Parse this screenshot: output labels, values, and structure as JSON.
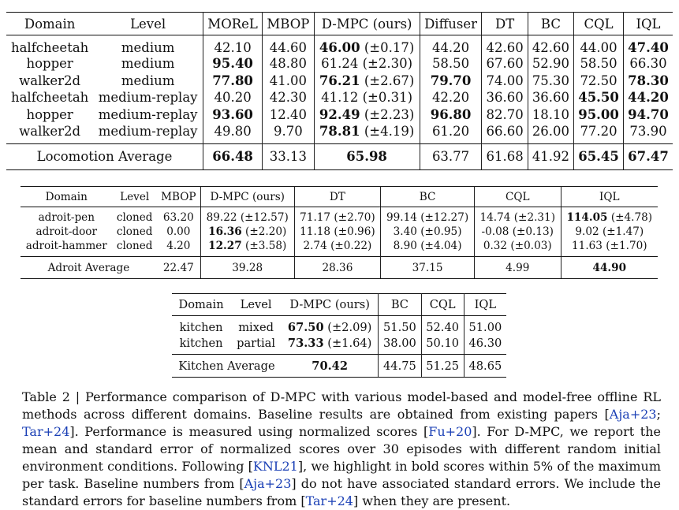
{
  "table1": {
    "headers": [
      "Domain",
      "Level",
      "MOReL",
      "MBOP",
      "D-MPC (ours)",
      "Diffuser",
      "DT",
      "BC",
      "CQL",
      "IQL"
    ],
    "rows": [
      {
        "domain": "halfcheetah",
        "level": "medium",
        "morel": "42.10",
        "mbop": "44.60",
        "dmpc": "46.00",
        "dmpc_se": "(±0.17)",
        "diffuser": "44.20",
        "dt": "42.60",
        "bc": "42.60",
        "cql": "44.00",
        "iql": "47.40"
      },
      {
        "domain": "hopper",
        "level": "medium",
        "morel": "95.40",
        "mbop": "48.80",
        "dmpc": "61.24",
        "dmpc_se": "(±2.30)",
        "diffuser": "58.50",
        "dt": "67.60",
        "bc": "52.90",
        "cql": "58.50",
        "iql": "66.30"
      },
      {
        "domain": "walker2d",
        "level": "medium",
        "morel": "77.80",
        "mbop": "41.00",
        "dmpc": "76.21",
        "dmpc_se": "(±2.67)",
        "diffuser": "79.70",
        "dt": "74.00",
        "bc": "75.30",
        "cql": "72.50",
        "iql": "78.30"
      },
      {
        "domain": "halfcheetah",
        "level": "medium-replay",
        "morel": "40.20",
        "mbop": "42.30",
        "dmpc": "41.12",
        "dmpc_se": "(±0.31)",
        "diffuser": "42.20",
        "dt": "36.60",
        "bc": "36.60",
        "cql": "45.50",
        "iql": "44.20"
      },
      {
        "domain": "hopper",
        "level": "medium-replay",
        "morel": "93.60",
        "mbop": "12.40",
        "dmpc": "92.49",
        "dmpc_se": "(±2.23)",
        "diffuser": "96.80",
        "dt": "82.70",
        "bc": "18.10",
        "cql": "95.00",
        "iql": "94.70"
      },
      {
        "domain": "walker2d",
        "level": "medium-replay",
        "morel": "49.80",
        "mbop": "9.70",
        "dmpc": "78.81",
        "dmpc_se": "(±4.19)",
        "diffuser": "61.20",
        "dt": "66.60",
        "bc": "26.00",
        "cql": "77.20",
        "iql": "73.90"
      }
    ],
    "average": {
      "label": "Locomotion Average",
      "morel": "66.48",
      "mbop": "33.13",
      "dmpc": "65.98",
      "diffuser": "63.77",
      "dt": "61.68",
      "bc": "41.92",
      "cql": "65.45",
      "iql": "67.47"
    }
  },
  "table2": {
    "headers": [
      "Domain",
      "Level",
      "MBOP",
      "D-MPC (ours)",
      "DT",
      "BC",
      "CQL",
      "IQL"
    ],
    "rows": [
      {
        "domain": "adroit-pen",
        "level": "cloned",
        "mbop": "63.20",
        "dmpc": "89.22",
        "dmpc_se": "(±12.57)",
        "dt": "71.17",
        "dt_se": "(±2.70)",
        "bc": "99.14",
        "bc_se": "(±12.27)",
        "cql": "14.74",
        "cql_se": "(±2.31)",
        "iql": "114.05",
        "iql_se": "(±4.78)"
      },
      {
        "domain": "adroit-door",
        "level": "cloned",
        "mbop": "0.00",
        "dmpc": "16.36",
        "dmpc_se": "(±2.20)",
        "dt": "11.18",
        "dt_se": "(±0.96)",
        "bc": "3.40",
        "bc_se": "(±0.95)",
        "cql": "-0.08",
        "cql_se": "(±0.13)",
        "iql": "9.02",
        "iql_se": "(±1.47)"
      },
      {
        "domain": "adroit-hammer",
        "level": "cloned",
        "mbop": "4.20",
        "dmpc": "12.27",
        "dmpc_se": "(±3.58)",
        "dt": "2.74",
        "dt_se": "(±0.22)",
        "bc": "8.90",
        "bc_se": "(±4.04)",
        "cql": "0.32",
        "cql_se": "(±0.03)",
        "iql": "11.63",
        "iql_se": "(±1.70)"
      }
    ],
    "average": {
      "label": "Adroit Average",
      "mbop": "22.47",
      "dmpc": "39.28",
      "dt": "28.36",
      "bc": "37.15",
      "cql": "4.99",
      "iql": "44.90"
    }
  },
  "table3": {
    "headers": [
      "Domain",
      "Level",
      "D-MPC (ours)",
      "BC",
      "CQL",
      "IQL"
    ],
    "rows": [
      {
        "domain": "kitchen",
        "level": "mixed",
        "dmpc": "67.50",
        "dmpc_se": "(±2.09)",
        "bc": "51.50",
        "cql": "52.40",
        "iql": "51.00"
      },
      {
        "domain": "kitchen",
        "level": "partial",
        "dmpc": "73.33",
        "dmpc_se": "(±1.64)",
        "bc": "38.00",
        "cql": "50.10",
        "iql": "46.30"
      }
    ],
    "average": {
      "label": "Kitchen Average",
      "dmpc": "70.42",
      "bc": "44.75",
      "cql": "51.25",
      "iql": "48.65"
    }
  },
  "caption": {
    "s1": "Table 2 | Performance comparison of D-MPC with various model-based and model-free offline RL methods across different domains. Baseline results are obtained from existing papers [",
    "cite_aja": "Aja+23",
    "s2": "; ",
    "cite_tar": "Tar+24",
    "s3": "]. Performance is measured using normalized scores [",
    "cite_fu": "Fu+20",
    "s4": "]. For D-MPC, we report the mean and standard error of normalized scores over 30 episodes with different random initial environment conditions. Following [",
    "cite_knl": "KNL21",
    "s5": "], we highlight in bold scores within 5% of the maximum per task. Baseline numbers from [",
    "s6": "] do not have associated standard errors. We include the standard errors for baseline numbers from [",
    "s7": "] when they are present."
  }
}
